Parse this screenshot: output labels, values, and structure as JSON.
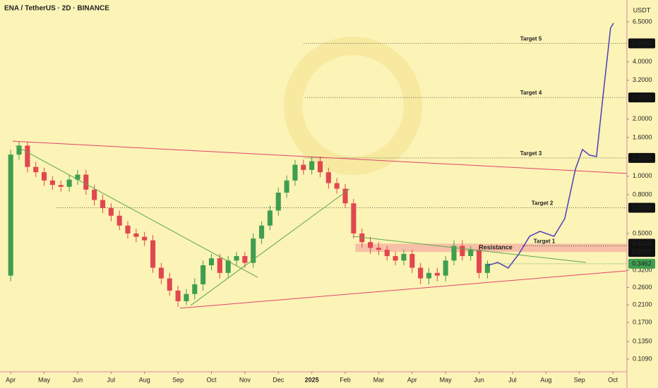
{
  "chart_data": {
    "type": "candlestick",
    "title": "ENA / TetherUS · 2D · BINANCE",
    "y_unit": "USDT",
    "log_scale": true,
    "xlim": [
      -0.32,
      18.42
    ],
    "ylim": [
      0.0935,
      8.47
    ],
    "xticks": [
      {
        "value": 0,
        "label": "Apr"
      },
      {
        "value": 1,
        "label": "May"
      },
      {
        "value": 2,
        "label": "Jun"
      },
      {
        "value": 3,
        "label": "Jul"
      },
      {
        "value": 4,
        "label": "Aug"
      },
      {
        "value": 5,
        "label": "Sep"
      },
      {
        "value": 6,
        "label": "Oct"
      },
      {
        "value": 7,
        "label": "Nov"
      },
      {
        "value": 8,
        "label": "Dec"
      },
      {
        "value": 9,
        "label": "2025"
      },
      {
        "value": 10,
        "label": "Feb"
      },
      {
        "value": 11,
        "label": "Mar"
      },
      {
        "value": 12,
        "label": "Apr"
      },
      {
        "value": 13,
        "label": "May"
      },
      {
        "value": 14,
        "label": "Jun"
      },
      {
        "value": 15,
        "label": "Jul"
      },
      {
        "value": 16,
        "label": "Aug"
      },
      {
        "value": 17,
        "label": "Sep"
      },
      {
        "value": 18,
        "label": "Oct"
      }
    ],
    "yticks": [
      {
        "value": 6.5,
        "label": "6.5000"
      },
      {
        "value": 4,
        "label": "4.0000"
      },
      {
        "value": 3.2,
        "label": "3.2000"
      },
      {
        "value": 2,
        "label": "2.0000"
      },
      {
        "value": 1.6,
        "label": "1.6000"
      },
      {
        "value": 1,
        "label": "1.0000"
      },
      {
        "value": 0.8,
        "label": "0.8000"
      },
      {
        "value": 0.5,
        "label": "0.5000"
      },
      {
        "value": 0.32,
        "label": "0.3200"
      },
      {
        "value": 0.26,
        "label": "0.2600"
      },
      {
        "value": 0.21,
        "label": "0.2100"
      },
      {
        "value": 0.17,
        "label": "0.1700"
      },
      {
        "value": 0.135,
        "label": "0.1350"
      },
      {
        "value": 0.109,
        "label": "0.1090"
      }
    ],
    "up_color": "#3f9e4f",
    "down_color": "#e0474f",
    "candles": {
      "x": [
        0,
        0.25,
        0.5,
        0.75,
        1,
        1.25,
        1.5,
        1.75,
        2,
        2.25,
        2.5,
        2.75,
        3,
        3.25,
        3.5,
        3.75,
        4,
        4.25,
        4.5,
        4.75,
        5,
        5.25,
        5.5,
        5.75,
        6,
        6.25,
        6.5,
        6.75,
        7,
        7.25,
        7.5,
        7.75,
        8,
        8.25,
        8.5,
        8.75,
        9,
        9.25,
        9.5,
        9.75,
        10,
        10.25,
        10.5,
        10.75,
        11,
        11.25,
        11.5,
        11.75,
        12,
        12.25,
        12.5,
        12.75,
        13,
        13.25,
        13.5,
        13.75,
        14,
        14.25
      ],
      "open": [
        0.3,
        1.3,
        1.45,
        1.12,
        1.05,
        0.95,
        0.9,
        0.88,
        0.96,
        1.02,
        0.85,
        0.75,
        0.68,
        0.62,
        0.55,
        0.5,
        0.48,
        0.46,
        0.33,
        0.29,
        0.25,
        0.22,
        0.24,
        0.27,
        0.34,
        0.37,
        0.31,
        0.36,
        0.38,
        0.35,
        0.47,
        0.55,
        0.66,
        0.82,
        0.95,
        1.15,
        1.08,
        1.2,
        1.05,
        0.92,
        0.86,
        0.72,
        0.5,
        0.45,
        0.42,
        0.41,
        0.38,
        0.36,
        0.39,
        0.33,
        0.29,
        0.31,
        0.3,
        0.36,
        0.43,
        0.38,
        0.41,
        0.31
      ],
      "high": [
        1.38,
        1.53,
        1.52,
        1.19,
        1.11,
        1.0,
        0.95,
        1.02,
        1.08,
        1.08,
        0.9,
        0.8,
        0.72,
        0.66,
        0.58,
        0.53,
        0.51,
        0.49,
        0.35,
        0.31,
        0.265,
        0.255,
        0.29,
        0.36,
        0.39,
        0.39,
        0.38,
        0.4,
        0.4,
        0.5,
        0.58,
        0.7,
        0.87,
        1.01,
        1.22,
        1.22,
        1.27,
        1.27,
        1.11,
        0.98,
        0.91,
        0.76,
        0.53,
        0.48,
        0.45,
        0.43,
        0.4,
        0.41,
        0.41,
        0.35,
        0.33,
        0.33,
        0.38,
        0.46,
        0.46,
        0.43,
        0.43,
        0.36
      ],
      "low": [
        0.28,
        1.22,
        1.05,
        0.99,
        0.89,
        0.85,
        0.83,
        0.83,
        0.9,
        0.8,
        0.7,
        0.64,
        0.58,
        0.52,
        0.47,
        0.45,
        0.43,
        0.31,
        0.27,
        0.235,
        0.205,
        0.21,
        0.225,
        0.25,
        0.32,
        0.29,
        0.29,
        0.34,
        0.33,
        0.33,
        0.44,
        0.52,
        0.62,
        0.77,
        0.89,
        1.02,
        1.02,
        0.99,
        0.86,
        0.81,
        0.68,
        0.47,
        0.42,
        0.39,
        0.385,
        0.36,
        0.34,
        0.34,
        0.31,
        0.27,
        0.27,
        0.28,
        0.28,
        0.34,
        0.36,
        0.36,
        0.29,
        0.29
      ],
      "close": [
        1.3,
        1.45,
        1.12,
        1.05,
        0.95,
        0.9,
        0.88,
        0.96,
        1.02,
        0.85,
        0.75,
        0.68,
        0.62,
        0.55,
        0.5,
        0.48,
        0.46,
        0.33,
        0.29,
        0.25,
        0.22,
        0.24,
        0.27,
        0.34,
        0.37,
        0.31,
        0.36,
        0.38,
        0.35,
        0.47,
        0.55,
        0.66,
        0.82,
        0.95,
        1.15,
        1.08,
        1.2,
        1.05,
        0.92,
        0.86,
        0.72,
        0.5,
        0.45,
        0.42,
        0.41,
        0.38,
        0.36,
        0.39,
        0.33,
        0.29,
        0.31,
        0.3,
        0.36,
        0.43,
        0.38,
        0.41,
        0.31,
        0.346
      ]
    },
    "lines": [
      {
        "color": "#e0446e",
        "x": [
          0.06,
          18.42
        ],
        "y": [
          1.53,
          1.035
        ]
      },
      {
        "color": "#e0446e",
        "x": [
          5.06,
          18.42
        ],
        "y": [
          0.202,
          0.318
        ]
      },
      {
        "color": "#5aa84a",
        "x": [
          0.15,
          7.38
        ],
        "y": [
          1.445,
          0.294
        ]
      },
      {
        "color": "#5aa84a",
        "x": [
          5.38,
          10.13
        ],
        "y": [
          0.209,
          0.857
        ]
      },
      {
        "color": "#5aa84a",
        "x": [
          10.23,
          17.19
        ],
        "y": [
          0.483,
          0.352
        ]
      },
      {
        "color": "#4b3fb8",
        "x": [
          14.24,
          14.56,
          14.87,
          15.19,
          15.51,
          15.82,
          16.24,
          16.56,
          16.88,
          17.09,
          17.3,
          17.51,
          17.72,
          17.93,
          18.02
        ],
        "y": [
          0.338,
          0.352,
          0.329,
          0.39,
          0.483,
          0.513,
          0.483,
          0.598,
          1.089,
          1.384,
          1.292,
          1.271,
          2.79,
          6.03,
          6.4
        ]
      }
    ],
    "resistance": {
      "label": "Resistance",
      "x0": 10.3,
      "low": 0.3997,
      "high": 0.4416,
      "color": "#f4a9a0"
    },
    "targets": [
      {
        "label": "Target 5",
        "value": 5.0053,
        "x0": 8.76
      },
      {
        "label": "Target 4",
        "value": 2.6001,
        "x0": 8.8
      },
      {
        "label": "Target 3",
        "value": 1.2492,
        "x0": 8.76
      },
      {
        "label": "Target 2",
        "value": 0.6828,
        "x0": 1.37
      },
      {
        "label": "Target 1",
        "value": 0.43,
        "x0": 15.3
      }
    ],
    "last_price": 0.3462
  }
}
